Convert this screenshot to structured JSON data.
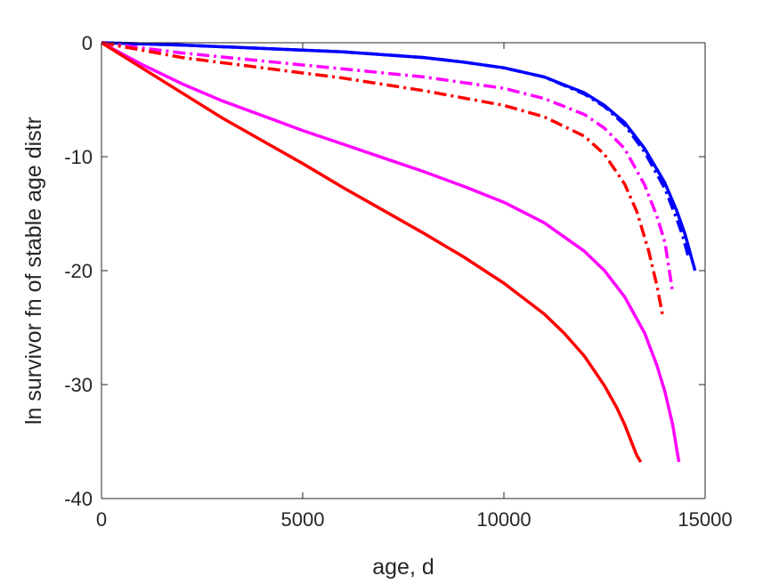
{
  "chart_data": {
    "type": "line",
    "title": "",
    "xlabel": "age, d",
    "ylabel": "ln survivor fn of stable age distr",
    "xlim": [
      0,
      15000
    ],
    "ylim": [
      -40,
      0
    ],
    "xticks": [
      0,
      5000,
      10000,
      15000
    ],
    "yticks": [
      0,
      -10,
      -20,
      -30,
      -40
    ],
    "grid": false,
    "legend": "none",
    "series": [
      {
        "color": "#0000ff",
        "dash": "solid",
        "x": [
          0,
          2000,
          4000,
          6000,
          8000,
          9000,
          10000,
          11000,
          12000,
          12500,
          13000,
          13500,
          14000,
          14300,
          14500,
          14750
        ],
        "y": [
          0,
          -0.2,
          -0.5,
          -0.8,
          -1.3,
          -1.7,
          -2.2,
          -3.0,
          -4.4,
          -5.5,
          -7.0,
          -9.3,
          -12.3,
          -14.8,
          -16.8,
          -20.0
        ]
      },
      {
        "color": "#0000ff",
        "dash": "dashdot",
        "x": [
          0,
          2000,
          4000,
          6000,
          8000,
          9000,
          10000,
          11000,
          12000,
          12500,
          13000,
          13500,
          14000,
          14300,
          14450,
          14600
        ],
        "y": [
          0,
          -0.2,
          -0.5,
          -0.8,
          -1.3,
          -1.7,
          -2.2,
          -3.0,
          -4.5,
          -5.6,
          -7.2,
          -9.6,
          -12.8,
          -15.5,
          -17.0,
          -19.0
        ]
      },
      {
        "color": "#ff00ff",
        "dash": "dashdot",
        "x": [
          0,
          2000,
          4000,
          6000,
          8000,
          10000,
          11000,
          12000,
          12500,
          13000,
          13500,
          13800,
          14000,
          14200
        ],
        "y": [
          0,
          -0.9,
          -1.6,
          -2.3,
          -3.0,
          -4.0,
          -4.9,
          -6.3,
          -7.5,
          -9.3,
          -12.5,
          -15.2,
          -17.5,
          -22.0
        ]
      },
      {
        "color": "#ff0000",
        "dash": "dashdot",
        "x": [
          0,
          2000,
          4000,
          6000,
          8000,
          10000,
          11000,
          12000,
          12500,
          13000,
          13300,
          13600,
          13800,
          13950
        ],
        "y": [
          0,
          -1.3,
          -2.2,
          -3.1,
          -4.2,
          -5.5,
          -6.5,
          -8.2,
          -9.8,
          -12.4,
          -14.8,
          -18.3,
          -21.3,
          -24.0
        ]
      },
      {
        "color": "#ff00ff",
        "dash": "solid",
        "x": [
          0,
          1000,
          2000,
          3000,
          4000,
          5000,
          6000,
          7000,
          8000,
          9000,
          10000,
          11000,
          12000,
          12500,
          13000,
          13500,
          13800,
          14000,
          14200,
          14300,
          14350
        ],
        "y": [
          0,
          -1.9,
          -3.6,
          -5.1,
          -6.4,
          -7.7,
          -8.9,
          -10.1,
          -11.3,
          -12.6,
          -14.0,
          -15.8,
          -18.3,
          -20.0,
          -22.3,
          -25.5,
          -28.3,
          -30.6,
          -33.6,
          -35.8,
          -36.8
        ]
      },
      {
        "color": "#ff0000",
        "dash": "solid",
        "x": [
          0,
          1000,
          2000,
          3000,
          4000,
          5000,
          6000,
          7000,
          8000,
          9000,
          10000,
          11000,
          11500,
          12000,
          12500,
          12800,
          13000,
          13200,
          13300,
          13400
        ],
        "y": [
          0,
          -2.2,
          -4.4,
          -6.6,
          -8.6,
          -10.6,
          -12.7,
          -14.7,
          -16.7,
          -18.8,
          -21.1,
          -23.8,
          -25.5,
          -27.5,
          -30.1,
          -32.0,
          -33.5,
          -35.3,
          -36.2,
          -36.8
        ]
      }
    ]
  }
}
